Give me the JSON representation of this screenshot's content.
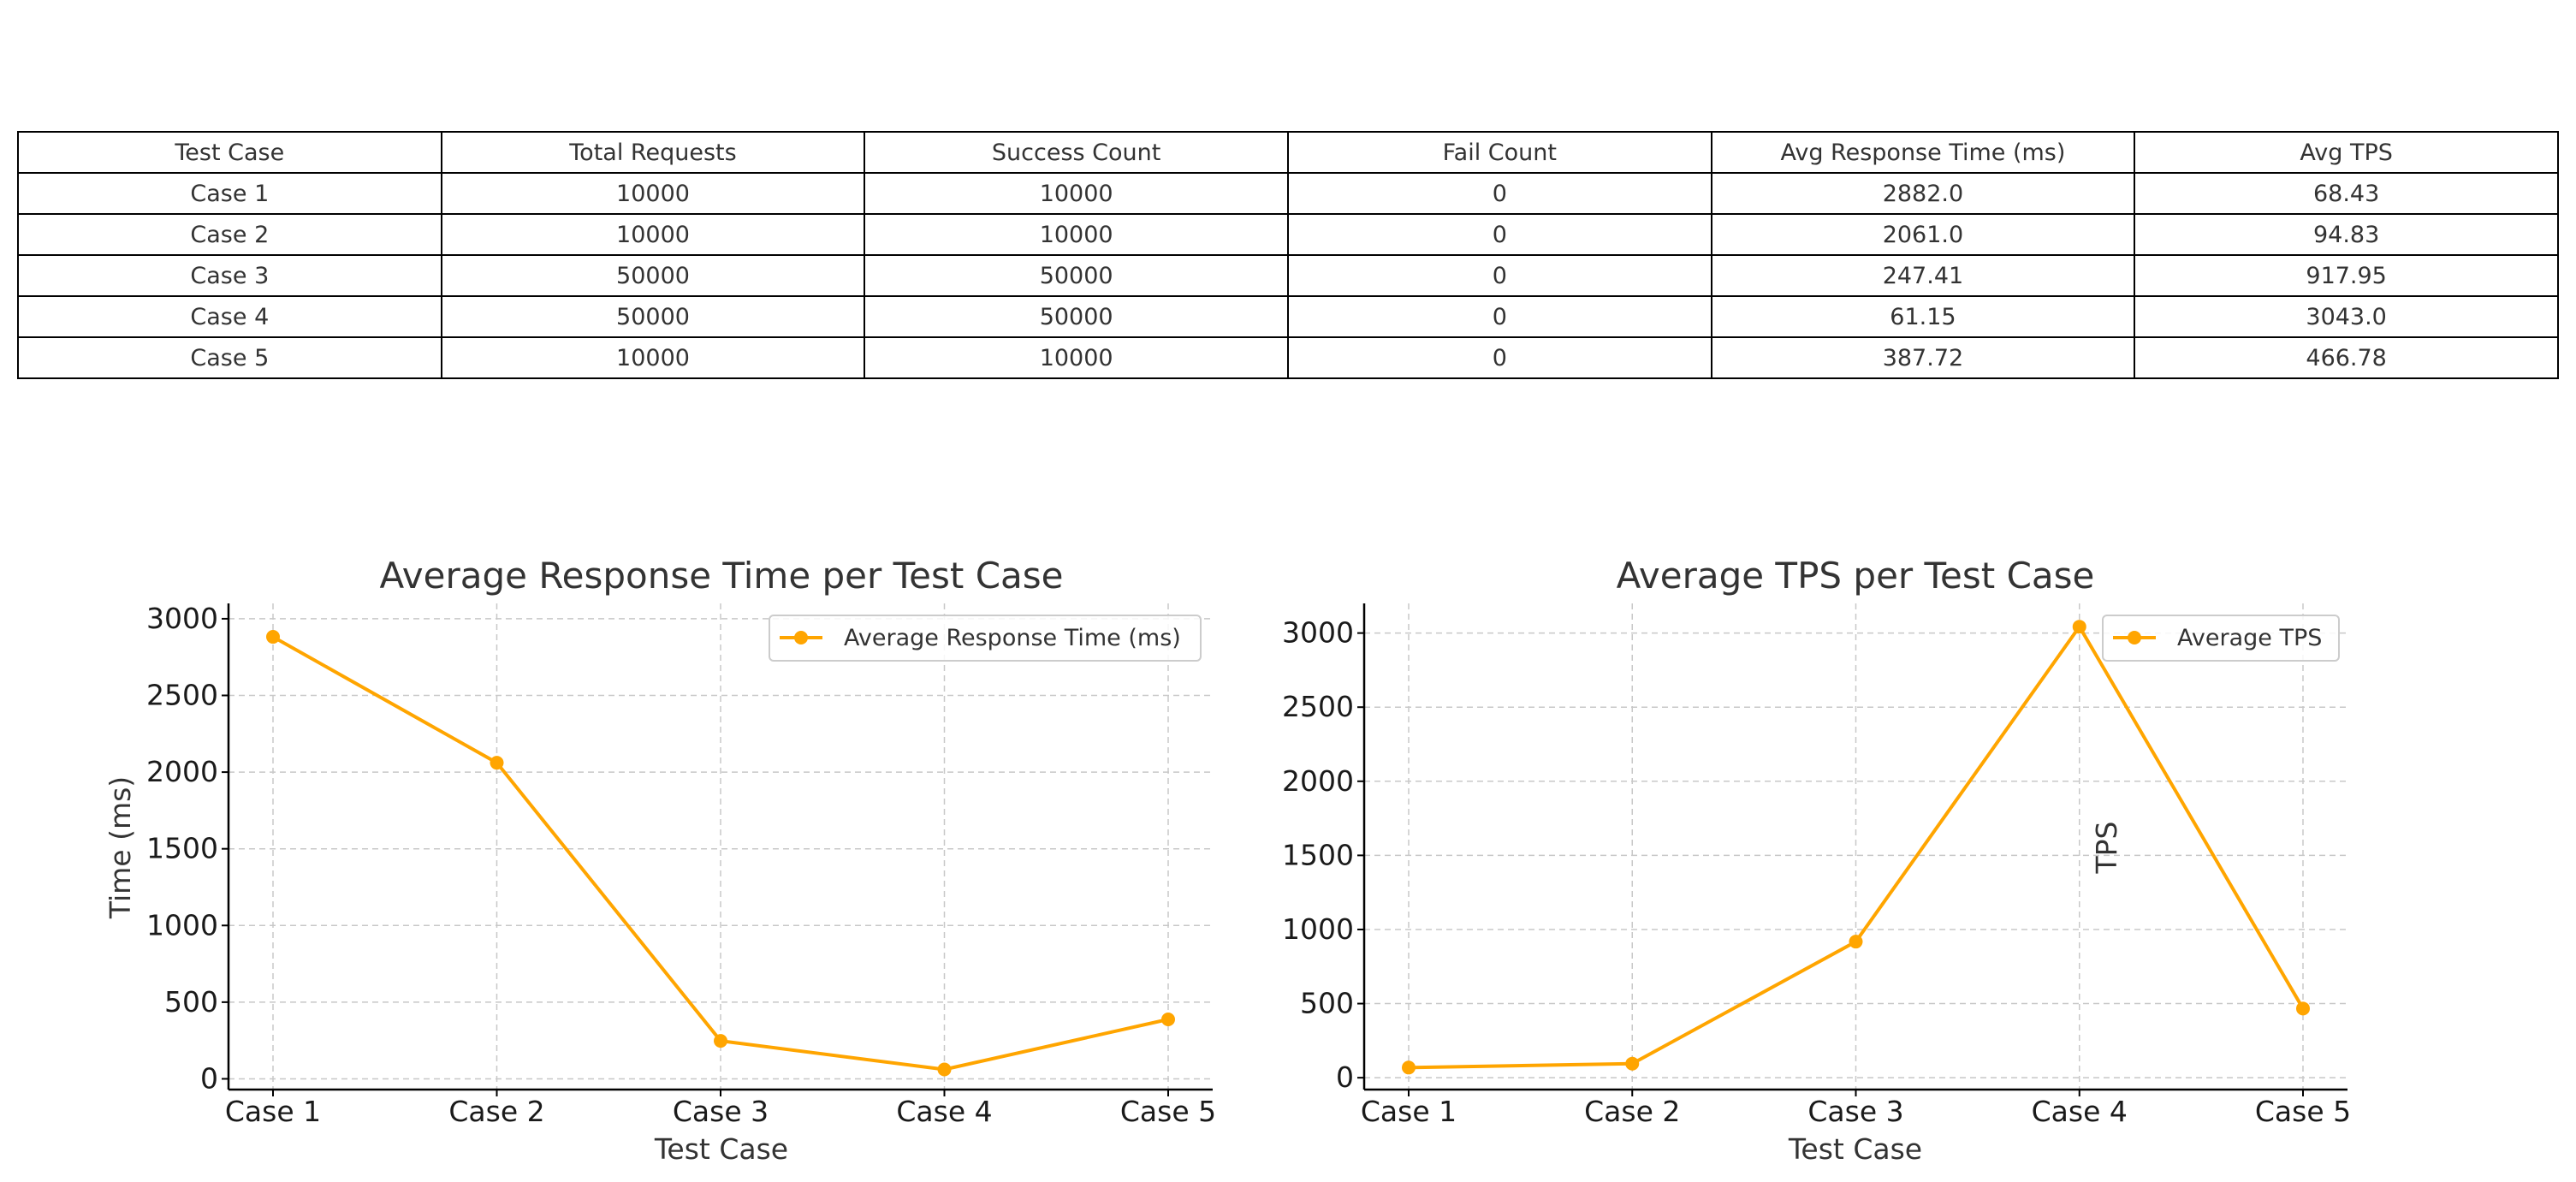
{
  "table": {
    "headers": [
      "Test Case",
      "Total Requests",
      "Success Count",
      "Fail Count",
      "Avg Response Time (ms)",
      "Avg TPS"
    ],
    "rows": [
      [
        "Case 1",
        "10000",
        "10000",
        "0",
        "2882.0",
        "68.43"
      ],
      [
        "Case 2",
        "10000",
        "10000",
        "0",
        "2061.0",
        "94.83"
      ],
      [
        "Case 3",
        "50000",
        "50000",
        "0",
        "247.41",
        "917.95"
      ],
      [
        "Case 4",
        "50000",
        "50000",
        "0",
        "61.15",
        "3043.0"
      ],
      [
        "Case 5",
        "10000",
        "10000",
        "0",
        "387.72",
        "466.78"
      ]
    ]
  },
  "chart_data": [
    {
      "type": "line",
      "title": "Average Response Time per Test Case",
      "xlabel": "Test Case",
      "ylabel": "Time (ms)",
      "categories": [
        "Case 1",
        "Case 2",
        "Case 3",
        "Case 4",
        "Case 5"
      ],
      "series": [
        {
          "name": "Average Response Time (ms)",
          "values": [
            2882.0,
            2061.0,
            247.41,
            61.15,
            387.72
          ],
          "color": "#ffa500",
          "marker": "circle"
        }
      ],
      "ylim": [
        -70,
        3100
      ],
      "yticks": [
        0,
        500,
        1000,
        1500,
        2000,
        2500,
        3000
      ],
      "grid": true,
      "legend": "top-right"
    },
    {
      "type": "line",
      "title": "Average TPS per Test Case",
      "xlabel": "Test Case",
      "ylabel": "TPS",
      "categories": [
        "Case 1",
        "Case 2",
        "Case 3",
        "Case 4",
        "Case 5"
      ],
      "series": [
        {
          "name": "Average TPS",
          "values": [
            68.43,
            94.83,
            917.95,
            3043.0,
            466.78
          ],
          "color": "#ffa500",
          "marker": "circle"
        }
      ],
      "ylim": [
        -80,
        3200
      ],
      "yticks": [
        0,
        500,
        1000,
        1500,
        2000,
        2500,
        3000
      ],
      "grid": true,
      "legend": "top-right"
    }
  ]
}
